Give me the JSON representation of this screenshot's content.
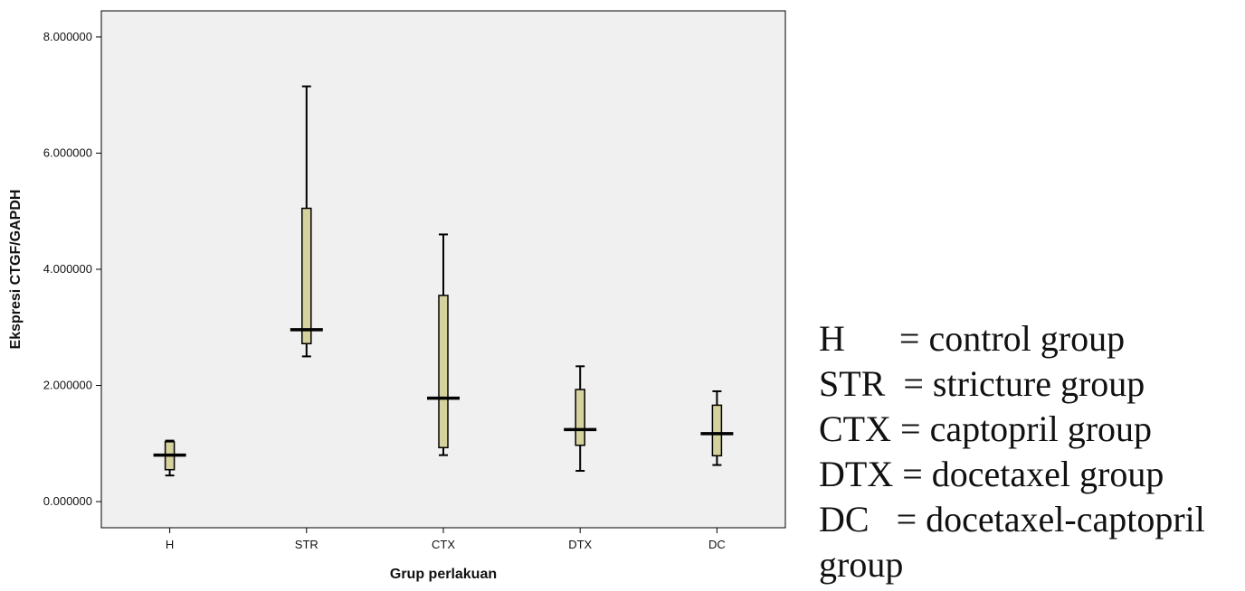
{
  "chart_data": {
    "type": "boxplot",
    "xlabel": "Grup perlakuan",
    "ylabel": "Ekspresi CTGF/GAPDH",
    "ylim": [
      -0.45,
      8.45
    ],
    "yticks": [
      0,
      2,
      4,
      6,
      8
    ],
    "ytick_labels": [
      "0.000000",
      "2.000000",
      "4.000000",
      "6.000000",
      "8.000000"
    ],
    "categories": [
      "H",
      "STR",
      "CTX",
      "DTX",
      "DC"
    ],
    "boxes": [
      {
        "category": "H",
        "min": 0.45,
        "q1": 0.55,
        "median": 0.8,
        "q3": 1.03,
        "max": 1.05
      },
      {
        "category": "STR",
        "min": 2.5,
        "q1": 2.72,
        "median": 2.96,
        "q3": 5.05,
        "max": 7.15
      },
      {
        "category": "CTX",
        "min": 0.8,
        "q1": 0.93,
        "median": 1.78,
        "q3": 3.55,
        "max": 4.6
      },
      {
        "category": "DTX",
        "min": 0.53,
        "q1": 0.97,
        "median": 1.24,
        "q3": 1.93,
        "max": 2.33
      },
      {
        "category": "DC",
        "min": 0.63,
        "q1": 0.79,
        "median": 1.17,
        "q3": 1.66,
        "max": 1.9
      }
    ],
    "colors": {
      "plot_bg": "#f0f0f0",
      "box_fill": "#d5d29e",
      "stroke": "#000000"
    },
    "grid": false
  },
  "legend": [
    {
      "abbr": "H",
      "sep": "      = ",
      "desc": "control group"
    },
    {
      "abbr": "STR",
      "sep": "  = ",
      "desc": "stricture group"
    },
    {
      "abbr": "CTX",
      "sep": " = ",
      "desc": "captopril group"
    },
    {
      "abbr": "DTX",
      "sep": " = ",
      "desc": "docetaxel group"
    },
    {
      "abbr": "DC",
      "sep": "   = ",
      "desc": "docetaxel-captopril"
    },
    {
      "abbr": "",
      "sep": "",
      "desc": "group"
    }
  ]
}
